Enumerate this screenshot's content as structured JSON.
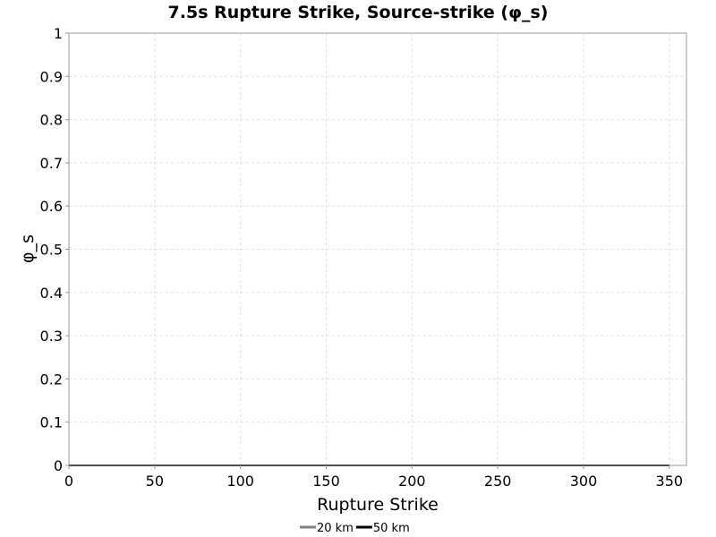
{
  "chart_data": {
    "type": "line",
    "title": "7.5s Rupture Strike, Source-strike (φ_s)",
    "xlabel": "Rupture Strike",
    "ylabel": "φ_s",
    "xlim": [
      0,
      360
    ],
    "ylim": [
      0,
      1
    ],
    "xticks": [
      "0",
      "50",
      "100",
      "150",
      "200",
      "250",
      "300",
      "350"
    ],
    "yticks": [
      "0",
      "0.1",
      "0.2",
      "0.3",
      "0.4",
      "0.5",
      "0.6",
      "0.7",
      "0.8",
      "0.9",
      "1"
    ],
    "grid": true,
    "legend_position": "bottom",
    "series": [
      {
        "name": "20 km",
        "color": "#808080",
        "x": [
          0,
          350
        ],
        "y": [
          0,
          0
        ]
      },
      {
        "name": "50 km",
        "color": "#000000",
        "x": [
          0,
          350
        ],
        "y": [
          0,
          0
        ]
      }
    ]
  }
}
